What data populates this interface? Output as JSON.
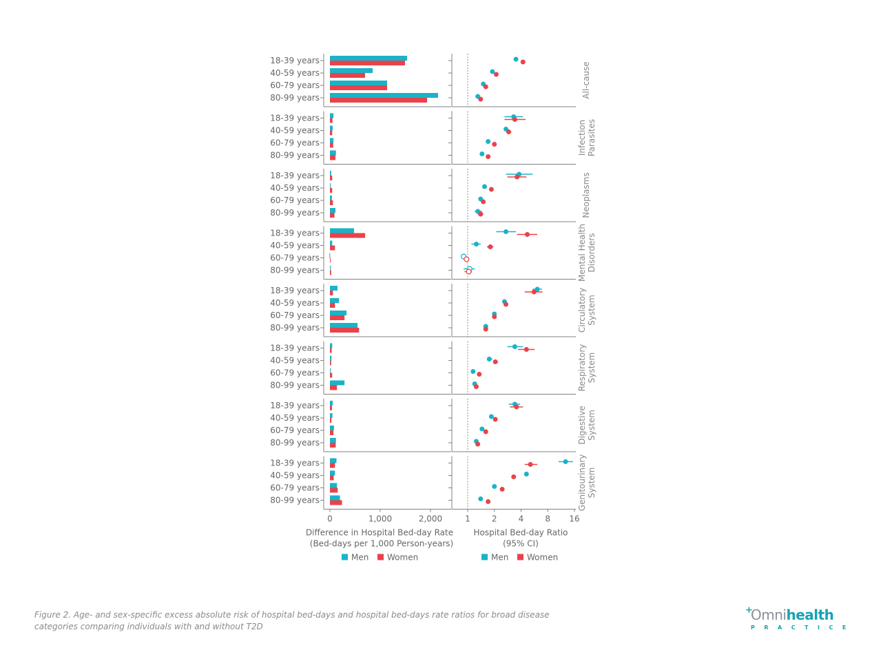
{
  "caption": "Figure 2. Age- and sex-specific excess absolute risk of hospital bed-days and hospital bed-days rate ratios for broad disease categories comparing individuals with and without T2D",
  "logo": {
    "main_a": "Omni",
    "main_b": "health",
    "sub": "PRACTICE"
  },
  "colors": {
    "men": "#1ab3c8",
    "women": "#e8434b",
    "axis": "#808080",
    "text": "#666666"
  },
  "chart_data": [
    {
      "type": "bar",
      "orientation": "horizontal",
      "xlabel": "Difference in Hospital Bed-day Rate",
      "xlabel2": "(Bed-days per 1,000 Person-years)",
      "xlim": [
        -100,
        2300
      ],
      "xticks": [
        0,
        1000,
        2000
      ],
      "xtick_labels": [
        "0",
        "1,000",
        "2,000"
      ],
      "legend": [
        "Men",
        "Women"
      ],
      "legend_position": "bottom",
      "categories": [
        "18-39 years",
        "40-59 years",
        "60-79 years",
        "80-99 years"
      ],
      "panels": [
        {
          "name": "All-cause",
          "men": [
            1534,
            849,
            1137,
            2151
          ],
          "women": [
            1493,
            699,
            1137,
            1932
          ]
        },
        {
          "name": "Infection Parasites",
          "men": [
            70,
            55,
            70,
            120
          ],
          "women": [
            50,
            45,
            65,
            110
          ]
        },
        {
          "name": "Neoplasms",
          "men": [
            25,
            15,
            40,
            110
          ],
          "women": [
            45,
            45,
            60,
            90
          ]
        },
        {
          "name": "Mental Health Disorders",
          "men": [
            480,
            45,
            -10,
            15
          ],
          "women": [
            700,
            100,
            5,
            25
          ]
        },
        {
          "name": "Circulatory System",
          "men": [
            150,
            180,
            330,
            550
          ],
          "women": [
            60,
            100,
            290,
            580
          ]
        },
        {
          "name": "Respiratory System",
          "men": [
            45,
            30,
            5,
            290
          ],
          "women": [
            35,
            25,
            45,
            140
          ]
        },
        {
          "name": "Digestive System",
          "men": [
            55,
            50,
            80,
            120
          ],
          "women": [
            40,
            30,
            70,
            115
          ]
        },
        {
          "name": "Genitourinary System",
          "men": [
            130,
            100,
            140,
            200
          ],
          "women": [
            100,
            75,
            155,
            240
          ]
        }
      ]
    },
    {
      "type": "scatter",
      "subtype": "forest",
      "xscale": "log2",
      "xlabel": "Hospital Bed-day Ratio",
      "xlabel2": "(95% CI)",
      "xlim": [
        0.75,
        20
      ],
      "xticks": [
        1,
        2,
        4,
        8,
        16
      ],
      "xtick_labels": [
        "1",
        "2",
        "4",
        "8",
        "16"
      ],
      "reference_line": 1,
      "legend": [
        "Men",
        "Women"
      ],
      "legend_position": "bottom",
      "categories": [
        "18-39 years",
        "40-59 years",
        "60-79 years",
        "80-99 years"
      ],
      "panels": [
        {
          "name": "All-cause",
          "label_lines": [
            "All-cause"
          ],
          "men": [
            [
              3.5,
              3.3,
              3.7
            ],
            [
              1.9,
              1.85,
              1.95
            ],
            [
              1.5,
              1.45,
              1.55
            ],
            [
              1.3,
              1.27,
              1.33
            ]
          ],
          "women": [
            [
              4.2,
              4.0,
              4.4
            ],
            [
              2.1,
              2.05,
              2.15
            ],
            [
              1.6,
              1.55,
              1.65
            ],
            [
              1.4,
              1.37,
              1.43
            ]
          ],
          "men_open": [
            false,
            false,
            false,
            false
          ],
          "women_open": [
            false,
            false,
            false,
            false
          ]
        },
        {
          "name": "Infection Parasites",
          "label_lines": [
            "Infection",
            "Parasites"
          ],
          "men": [
            [
              3.3,
              2.6,
              4.2
            ],
            [
              2.7,
              2.6,
              2.85
            ],
            [
              1.7,
              1.65,
              1.75
            ],
            [
              1.45,
              1.4,
              1.5
            ]
          ],
          "women": [
            [
              3.4,
              2.6,
              4.5
            ],
            [
              2.9,
              2.75,
              3.1
            ],
            [
              2.0,
              1.95,
              2.05
            ],
            [
              1.7,
              1.6,
              1.8
            ]
          ],
          "men_open": [
            false,
            false,
            false,
            false
          ],
          "women_open": [
            false,
            false,
            false,
            false
          ]
        },
        {
          "name": "Neoplasms",
          "label_lines": [
            "Neoplasms"
          ],
          "men": [
            [
              3.8,
              2.7,
              5.4
            ],
            [
              1.55,
              1.5,
              1.6
            ],
            [
              1.4,
              1.35,
              1.45
            ],
            [
              1.3,
              1.2,
              1.45
            ]
          ],
          "women": [
            [
              3.6,
              2.8,
              4.6
            ],
            [
              1.85,
              1.75,
              1.95
            ],
            [
              1.5,
              1.45,
              1.55
            ],
            [
              1.4,
              1.3,
              1.5
            ]
          ],
          "men_open": [
            false,
            false,
            false,
            false
          ],
          "women_open": [
            false,
            false,
            false,
            false
          ]
        },
        {
          "name": "Mental Health Disorders",
          "label_lines": [
            "Mental Health",
            "Disorders"
          ],
          "men": [
            [
              2.7,
              2.1,
              3.5
            ],
            [
              1.25,
              1.1,
              1.4
            ],
            [
              0.9,
              0.87,
              0.93
            ],
            [
              1.05,
              0.9,
              1.2
            ]
          ],
          "women": [
            [
              4.7,
              3.6,
              6.1
            ],
            [
              1.8,
              1.65,
              1.95
            ],
            [
              0.97,
              0.94,
              1.0
            ],
            [
              1.03,
              0.92,
              1.12
            ]
          ],
          "men_open": [
            false,
            false,
            true,
            true
          ],
          "women_open": [
            false,
            false,
            true,
            true
          ]
        },
        {
          "name": "Circulatory System",
          "label_lines": [
            "Circulatory",
            "System"
          ],
          "men": [
            [
              6.1,
              5.4,
              6.9
            ],
            [
              2.6,
              2.5,
              2.7
            ],
            [
              2.0,
              1.95,
              2.05
            ],
            [
              1.6,
              1.5,
              1.7
            ]
          ],
          "women": [
            [
              5.6,
              4.4,
              7.0
            ],
            [
              2.7,
              2.6,
              2.8
            ],
            [
              2.0,
              1.95,
              2.05
            ],
            [
              1.6,
              1.55,
              1.65
            ]
          ],
          "men_open": [
            false,
            false,
            false,
            false
          ],
          "women_open": [
            false,
            false,
            false,
            false
          ]
        },
        {
          "name": "Respiratory System",
          "label_lines": [
            "Respiratory",
            "System"
          ],
          "men": [
            [
              3.4,
              2.8,
              4.2
            ],
            [
              1.75,
              1.65,
              1.9
            ],
            [
              1.15,
              1.1,
              1.2
            ],
            [
              1.2,
              1.15,
              1.25
            ]
          ],
          "women": [
            [
              4.6,
              3.7,
              5.7
            ],
            [
              2.05,
              1.95,
              2.2
            ],
            [
              1.35,
              1.3,
              1.4
            ],
            [
              1.25,
              1.2,
              1.3
            ]
          ],
          "men_open": [
            false,
            false,
            false,
            false
          ],
          "women_open": [
            false,
            false,
            false,
            false
          ]
        },
        {
          "name": "Digestive System",
          "label_lines": [
            "Digestive",
            "System"
          ],
          "men": [
            [
              3.4,
              2.9,
              3.9
            ],
            [
              1.85,
              1.8,
              1.9
            ],
            [
              1.45,
              1.4,
              1.5
            ],
            [
              1.25,
              1.2,
              1.3
            ]
          ],
          "women": [
            [
              3.55,
              3.0,
              4.2
            ],
            [
              2.05,
              2.0,
              2.1
            ],
            [
              1.6,
              1.55,
              1.65
            ],
            [
              1.3,
              1.25,
              1.35
            ]
          ],
          "men_open": [
            false,
            false,
            false,
            false
          ],
          "women_open": [
            false,
            false,
            false,
            false
          ]
        },
        {
          "name": "Genitourinary System",
          "label_lines": [
            "Genitourinary",
            "System"
          ],
          "men": [
            [
              12.7,
              10.6,
              15.4
            ],
            [
              4.6,
              4.4,
              4.8
            ],
            [
              2.0,
              1.95,
              2.05
            ],
            [
              1.4,
              1.35,
              1.45
            ]
          ],
          "women": [
            [
              5.1,
              4.4,
              6.1
            ],
            [
              3.3,
              3.2,
              3.4
            ],
            [
              2.45,
              2.35,
              2.55
            ],
            [
              1.7,
              1.65,
              1.75
            ]
          ],
          "men_open": [
            false,
            false,
            false,
            false
          ],
          "women_open": [
            false,
            false,
            false,
            false
          ]
        }
      ]
    }
  ]
}
